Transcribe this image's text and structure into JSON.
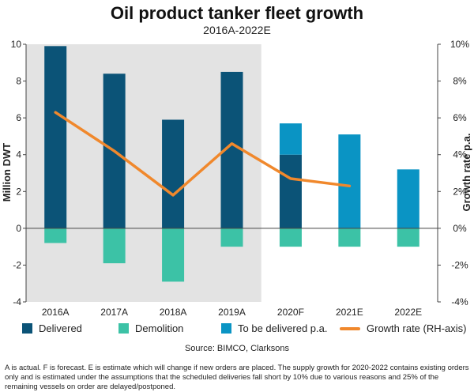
{
  "chart_data": {
    "type": "bar",
    "title": "Oil product tanker fleet growth",
    "subtitle": "2016A-2022E",
    "categories": [
      "2016A",
      "2017A",
      "2018A",
      "2019A",
      "2020F",
      "2021E",
      "2022E"
    ],
    "ylabel": "Million DWT",
    "y2label": "Growth rate p.a.",
    "ylim": [
      -4,
      10
    ],
    "yticks": [
      "-4",
      "-2",
      "0",
      "2",
      "4",
      "6",
      "8",
      "10"
    ],
    "y2lim": [
      -4,
      10
    ],
    "y2ticks": [
      "-4%",
      "-2%",
      "0%",
      "2%",
      "4%",
      "6%",
      "8%",
      "10%"
    ],
    "shaded_categories": [
      "2016A",
      "2017A",
      "2018A",
      "2019A"
    ],
    "series": [
      {
        "name": "Delivered",
        "kind": "bar",
        "color": "#0b5377",
        "values": [
          9.9,
          8.4,
          5.9,
          8.5,
          4.0,
          0,
          0
        ]
      },
      {
        "name": "Demolition",
        "kind": "bar",
        "color": "#3cc2a6",
        "values": [
          -0.8,
          -1.9,
          -2.9,
          -1.0,
          -1.0,
          -1.0,
          -1.0
        ]
      },
      {
        "name": "To be delivered p.a.",
        "kind": "bar",
        "color": "#0a94c4",
        "values": [
          0,
          0,
          0,
          0,
          1.7,
          5.1,
          3.2
        ]
      },
      {
        "name": "Growth rate (RH-axis)",
        "kind": "line",
        "color": "#f0882c",
        "axis": "right",
        "values": [
          6.3,
          4.2,
          1.8,
          4.6,
          2.7,
          2.3,
          null
        ]
      }
    ],
    "source": "Source: BIMCO, Clarksons",
    "footnote": "A is actual. F is forecast. E is estimate which will change if new orders are placed. The supply growth for 2020-2022 contains existing orders only and is estimated under the assumptions that the scheduled deliveries fall short by 10% due to various reasons and 25% of the remaining vessels on order are delayed/postponed."
  }
}
